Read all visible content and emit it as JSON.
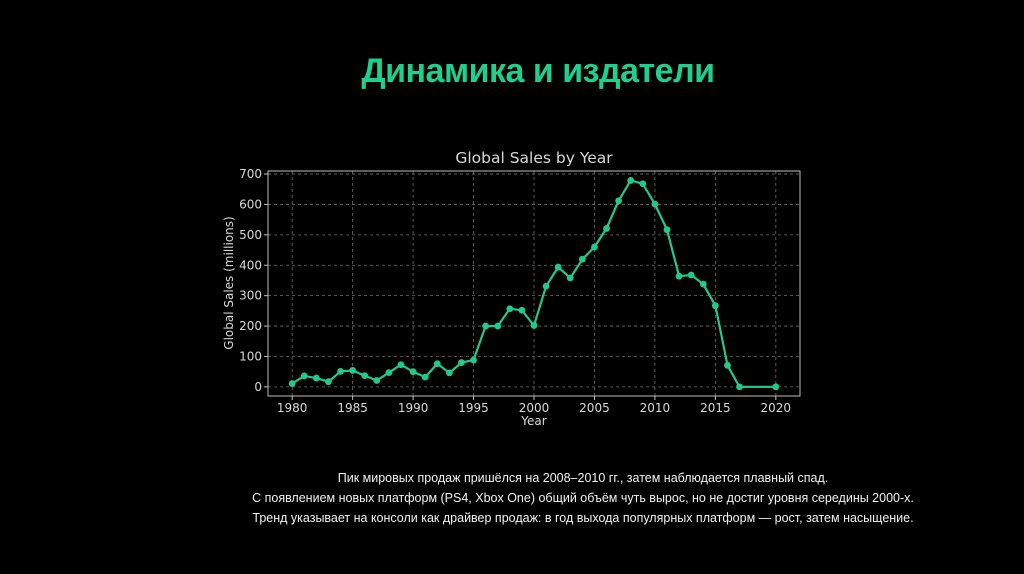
{
  "slide": {
    "title": "Динамика и издатели",
    "title_color": "#1fcf8f",
    "accent_color": "#22c98a"
  },
  "notes": [
    "Пик мировых продаж пришёлся на 2008–2010 гг., затем наблюдается плавный спад.",
    "С появлением новых платформ (PS4, Xbox One) общий объём чуть вырос, но не достиг уровня середины 2000-х.",
    "Тренд указывает на консоли как драйвер продаж: в год выхода популярных платформ — рост, затем насыщение."
  ],
  "chart_data": {
    "type": "line",
    "title": "Global Sales by Year",
    "xlabel": "Year",
    "ylabel": "Global Sales (millions)",
    "xlim": [
      1978,
      2022
    ],
    "ylim": [
      -30,
      710
    ],
    "xticks": [
      1980,
      1985,
      1990,
      1995,
      2000,
      2005,
      2010,
      2015,
      2020
    ],
    "yticks": [
      0,
      100,
      200,
      300,
      400,
      500,
      600,
      700
    ],
    "grid": true,
    "grid_style": "dashed",
    "series": [
      {
        "color": "#22c98a",
        "x": [
          1980,
          1981,
          1982,
          1983,
          1984,
          1985,
          1986,
          1987,
          1988,
          1989,
          1990,
          1991,
          1992,
          1993,
          1994,
          1995,
          1996,
          1997,
          1998,
          1999,
          2000,
          2001,
          2002,
          2003,
          2004,
          2005,
          2006,
          2007,
          2008,
          2009,
          2010,
          2011,
          2012,
          2013,
          2014,
          2015,
          2016,
          2017,
          2020
        ],
        "y": [
          11,
          36,
          29,
          17,
          51,
          54,
          37,
          21,
          47,
          73,
          50,
          32,
          76,
          46,
          80,
          88,
          200,
          200,
          257,
          252,
          202,
          331,
          394,
          358,
          420,
          460,
          521,
          612,
          679,
          668,
          601,
          517,
          364,
          368,
          338,
          267,
          71,
          0.05,
          0.3
        ]
      }
    ]
  }
}
